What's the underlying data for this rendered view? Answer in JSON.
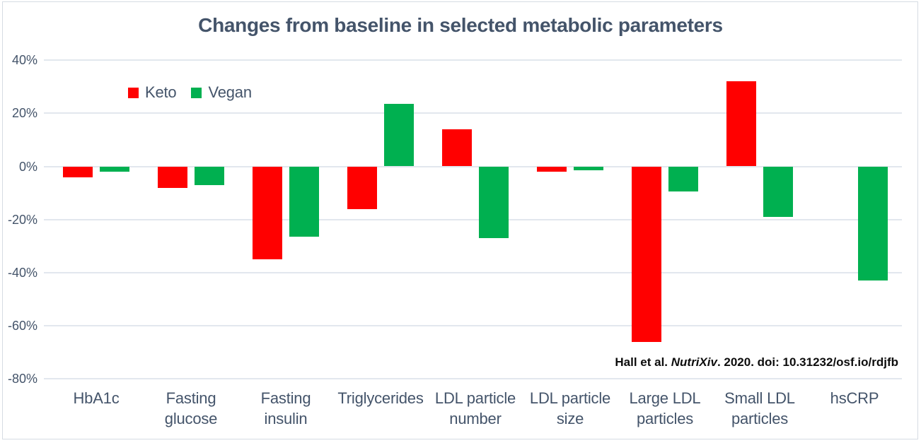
{
  "title": "Changes from baseline in selected metabolic parameters",
  "citation": {
    "prefix": "Hall et al. ",
    "italic_part": "NutriXiv",
    "suffix": ". 2020. doi: 10.31232/osf.io/rdjfb"
  },
  "colors": {
    "keto_red": "#ff0000",
    "vegan_green": "#00b050",
    "text_slate": "#44546a",
    "gridline": "#e2e7ee",
    "frame_border": "#d6dce3",
    "background": "#ffffff"
  },
  "chart_data": {
    "type": "bar",
    "title": "Changes from baseline in selected metabolic parameters",
    "categories": [
      "HbA1c",
      "Fasting glucose",
      "Fasting insulin",
      "Triglycerides",
      "LDL particle number",
      "LDL particle size",
      "Large LDL particles",
      "Small LDL particles",
      "hsCRP"
    ],
    "category_label_lines": [
      [
        "HbA1c"
      ],
      [
        "Fasting",
        "glucose"
      ],
      [
        "Fasting",
        "insulin"
      ],
      [
        "Triglycerides"
      ],
      [
        "LDL particle",
        "number"
      ],
      [
        "LDL particle",
        "size"
      ],
      [
        "Large LDL",
        "particles"
      ],
      [
        "Small LDL",
        "particles"
      ],
      [
        "hsCRP"
      ]
    ],
    "series": [
      {
        "name": "Keto",
        "color": "#ff0000",
        "values": [
          -4,
          -8,
          -35,
          -16,
          14,
          -2,
          -66,
          32,
          0
        ]
      },
      {
        "name": "Vegan",
        "color": "#00b050",
        "values": [
          -2,
          -7,
          -26.5,
          23.5,
          -27,
          -1.5,
          -9.5,
          -19,
          -43
        ]
      }
    ],
    "ylabel": "",
    "xlabel": "",
    "unit": "%",
    "ylim": [
      -80,
      40
    ],
    "ytick_step": 20,
    "ytick_labels": [
      "40%",
      "20%",
      "0%",
      "-20%",
      "-40%",
      "-60%",
      "-80%"
    ],
    "grid": true,
    "legend_position": "inside-top-left",
    "annotation": "Hall et al. NutriXiv. 2020. doi: 10.31232/osf.io/rdjfb"
  }
}
